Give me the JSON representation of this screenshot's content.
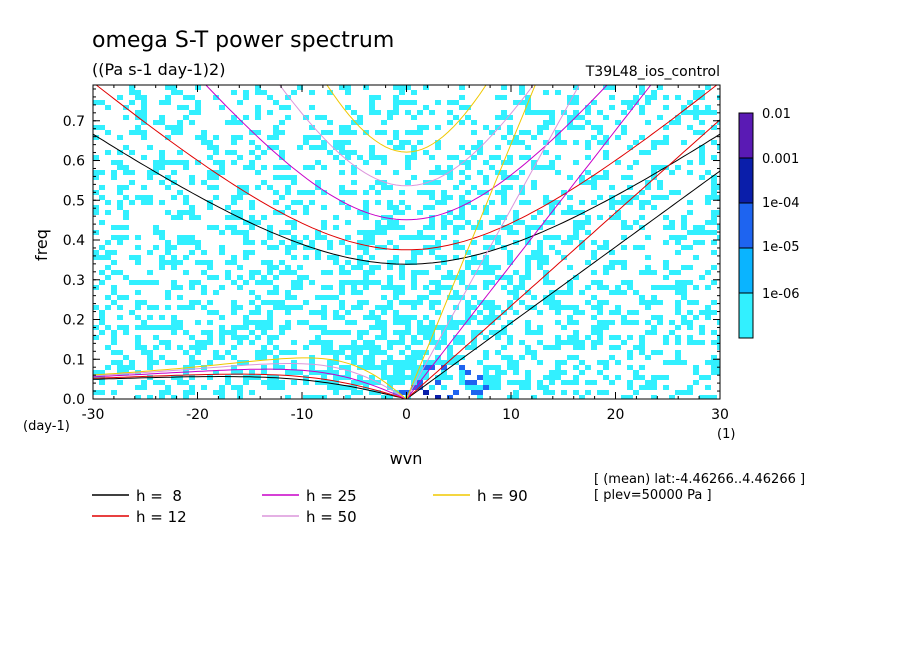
{
  "chart_data": {
    "type": "heatmap",
    "title": "omega S-T power spectrum",
    "subtitle": "((Pa s-1 day-1)2)",
    "experiment": "T39L48_ios_control",
    "xlabel": "wvn",
    "ylabel": "freq",
    "xunit": "(1)",
    "yunit": "(day-1)",
    "xlim": [
      -30,
      30
    ],
    "ylim": [
      0,
      0.79
    ],
    "xticks": [
      "-30",
      "-20",
      "-10",
      "0",
      "10",
      "20",
      "30"
    ],
    "xtick_values": [
      -30,
      -20,
      -10,
      0,
      10,
      20,
      30
    ],
    "yticks": [
      "0.0",
      "0.1",
      "0.2",
      "0.3",
      "0.4",
      "0.5",
      "0.6",
      "0.7"
    ],
    "ytick_values": [
      0,
      0.1,
      0.2,
      0.3,
      0.4,
      0.5,
      0.6,
      0.7
    ],
    "colorbar": {
      "labels": [
        "0.01",
        "0.001",
        "1e-04",
        "1e-05",
        "1e-06"
      ],
      "colors": [
        "#5a1ab4",
        "#0a1eaa",
        "#1e64f0",
        "#0ab4ff",
        "#32f0ff"
      ]
    },
    "annotations": [
      "[ (mean) lat:-4.46266..4.46266 ]",
      "[ plev=50000 Pa ]"
    ],
    "series": [
      {
        "name": "h =  8",
        "label": "h =  8",
        "h": 8,
        "color": "#000000"
      },
      {
        "name": "h = 12",
        "label": "h = 12",
        "h": 12,
        "color": "#e00000"
      },
      {
        "name": "h = 25",
        "label": "h = 25",
        "h": 25,
        "color": "#c800c8"
      },
      {
        "name": "h = 50",
        "label": "h = 50",
        "h": 50,
        "color": "#dc96dc"
      },
      {
        "name": "h = 90",
        "label": "h = 90",
        "h": 90,
        "color": "#f0c800"
      }
    ],
    "grid": false,
    "legend_position": "bottom"
  }
}
